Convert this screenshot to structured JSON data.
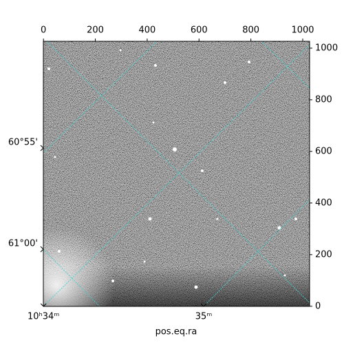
{
  "chart_data": {
    "type": "image",
    "xlabel": "pos.eq.ra",
    "xlim": [
      -0.5,
      1026.5
    ],
    "ylim": [
      -0.5,
      1026.5
    ],
    "xticks": [
      0,
      200,
      400,
      600,
      800,
      1000
    ],
    "yticks": [
      0,
      200,
      400,
      600,
      800,
      1000
    ],
    "ra_ticks": [
      {
        "value": 0,
        "label": "10ʰ34ᵐ"
      },
      {
        "value": 618,
        "label": "35ᵐ"
      }
    ],
    "dec_ticks": [
      {
        "value": 613,
        "label": "60°55'"
      },
      {
        "value": 221,
        "label": "61°00'"
      }
    ]
  }
}
